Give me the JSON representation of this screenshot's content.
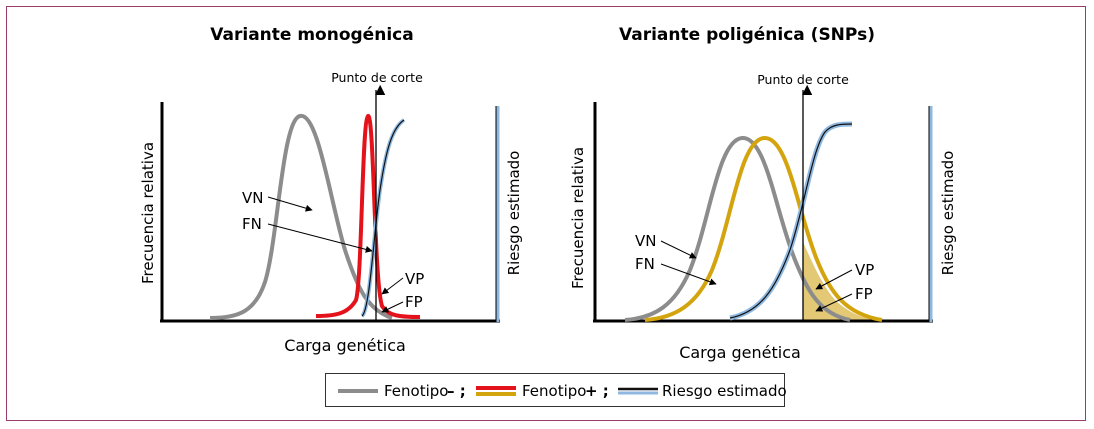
{
  "panels": {
    "left": {
      "title": "Variante monogénica",
      "y_label": "Frecuencia relativa",
      "x_label": "Carga genética",
      "right_label": "Riesgo estimado",
      "cutoff_label": "Punto de corte",
      "annotations": {
        "vn": "VN",
        "fn": "FN",
        "vp": "VP",
        "fp": "FP"
      }
    },
    "right": {
      "title": "Variante poligénica (SNPs)",
      "y_label": "Frecuencia relativa",
      "x_label": "Carga genética",
      "right_label": "Riesgo estimado",
      "cutoff_label": "Punto de corte",
      "annotations": {
        "vn": "VN",
        "fn": "FN",
        "vp": "VP",
        "fp": "FP"
      }
    }
  },
  "legend": {
    "items": [
      {
        "label": "Fenotipo ",
        "suffix": "– ;",
        "colors": [
          "#8c8c8c"
        ]
      },
      {
        "label": "Fenotipo ",
        "suffix": "+ ;",
        "colors": [
          "#e3121b",
          "#d4a40f"
        ]
      },
      {
        "label": "Riesgo estimado",
        "suffix": "",
        "colors": [
          "#111111",
          "#8fb8e0"
        ]
      }
    ]
  },
  "colors": {
    "negative": "#8c8c8c",
    "positive_mono": "#e3121b",
    "positive_poly": "#d4a40f",
    "risk_dark": "#111111",
    "risk_light": "#8fb8e0",
    "fp_fill": "#d9b548",
    "frame": "#9c3b6e"
  }
}
